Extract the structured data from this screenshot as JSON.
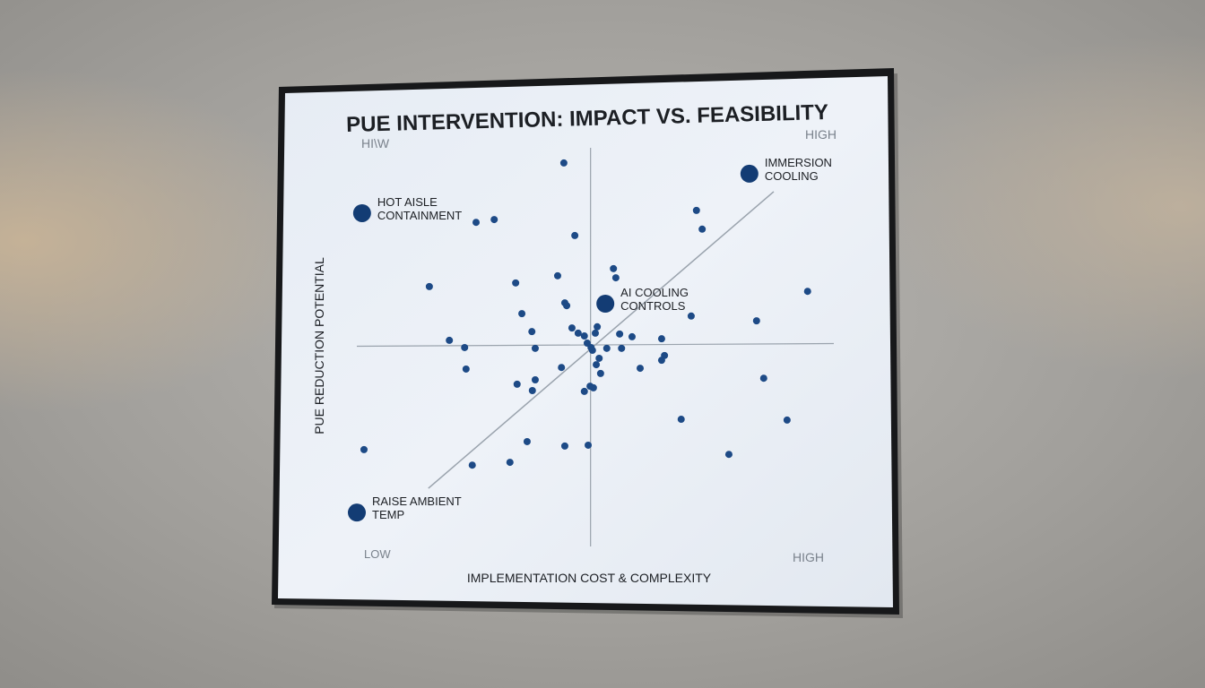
{
  "chart_data": {
    "type": "scatter",
    "title": "PUE INTERVENTION: IMPACT VS. FEASIBILITY",
    "xlabel": "IMPLEMENTATION COST & COMPLEXITY",
    "ylabel": "PUE REDUCTION POTENTIAL",
    "x_low_label": "LOW",
    "x_high_label": "HIGH",
    "y_low_label": "LOW",
    "y_high_label": "HIGH",
    "y_top_left_label": "HI\\W",
    "xlim": [
      0,
      10
    ],
    "ylim": [
      0,
      10
    ],
    "quadrant_lines": {
      "x": 4.9,
      "y": 5.0
    },
    "trend_line": [
      [
        1.5,
        1.46
      ],
      [
        8.74,
        8.9
      ]
    ],
    "colors": {
      "point": "#1d4a86",
      "highlight": "#133c74",
      "line": "#9aa3ad",
      "text": "#1c1f24",
      "muted": "#7a828c"
    },
    "highlighted": [
      {
        "label_line1": "HOT AISLE",
        "label_line2": "CONTAINMENT",
        "x": 0.11,
        "y": 8.36
      },
      {
        "label_line1": "IMMERSION",
        "label_line2": "COOLING",
        "x": 8.23,
        "y": 9.35
      },
      {
        "label_line1": "AI COOLING",
        "label_line2": "CONTROLS",
        "x": 5.21,
        "y": 6.09
      },
      {
        "label_line1": "RAISE AMBIENT",
        "label_line2": "TEMP",
        "x": 0.0,
        "y": 0.85
      }
    ],
    "points": [
      [
        4.34,
        9.62
      ],
      [
        2.5,
        8.13
      ],
      [
        2.88,
        8.2
      ],
      [
        4.57,
        7.8
      ],
      [
        7.12,
        8.43
      ],
      [
        7.24,
        7.96
      ],
      [
        5.38,
        6.97
      ],
      [
        5.43,
        6.74
      ],
      [
        4.21,
        6.79
      ],
      [
        3.33,
        6.61
      ],
      [
        1.52,
        6.52
      ],
      [
        9.45,
        6.4
      ],
      [
        4.36,
        6.11
      ],
      [
        4.4,
        6.04
      ],
      [
        3.46,
        5.84
      ],
      [
        7.01,
        5.78
      ],
      [
        8.38,
        5.66
      ],
      [
        3.67,
        5.39
      ],
      [
        4.51,
        5.48
      ],
      [
        4.64,
        5.35
      ],
      [
        4.77,
        5.28
      ],
      [
        5.04,
        5.51
      ],
      [
        5.0,
        5.35
      ],
      [
        5.51,
        5.33
      ],
      [
        5.77,
        5.26
      ],
      [
        6.39,
        5.21
      ],
      [
        1.94,
        5.17
      ],
      [
        2.26,
        4.99
      ],
      [
        3.74,
        4.97
      ],
      [
        4.83,
        5.1
      ],
      [
        4.91,
        4.99
      ],
      [
        4.94,
        4.92
      ],
      [
        5.24,
        4.97
      ],
      [
        5.55,
        4.97
      ],
      [
        6.45,
        4.79
      ],
      [
        6.39,
        4.67
      ],
      [
        5.08,
        4.72
      ],
      [
        5.02,
        4.56
      ],
      [
        4.29,
        4.49
      ],
      [
        2.29,
        4.45
      ],
      [
        5.94,
        4.47
      ],
      [
        5.11,
        4.34
      ],
      [
        8.53,
        4.22
      ],
      [
        3.36,
        4.07
      ],
      [
        3.74,
        4.18
      ],
      [
        3.68,
        3.91
      ],
      [
        4.77,
        3.89
      ],
      [
        4.89,
        4.02
      ],
      [
        4.96,
        3.98
      ],
      [
        6.8,
        3.19
      ],
      [
        9.02,
        3.17
      ],
      [
        0.15,
        2.43
      ],
      [
        3.57,
        2.63
      ],
      [
        4.36,
        2.52
      ],
      [
        4.85,
        2.54
      ],
      [
        7.8,
        2.31
      ],
      [
        2.42,
        2.04
      ],
      [
        3.21,
        2.11
      ]
    ]
  }
}
